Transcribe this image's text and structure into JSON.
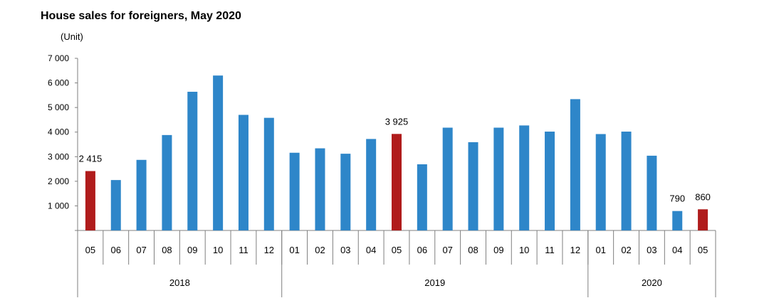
{
  "chart_data": {
    "type": "bar",
    "title": "House sales for foreigners, May 2020",
    "ylabel": "(Unit)",
    "xlabel": "",
    "ylim": [
      0,
      7000
    ],
    "yticks": [
      {
        "value": 1000,
        "label": "1 000"
      },
      {
        "value": 2000,
        "label": "2 000"
      },
      {
        "value": 3000,
        "label": "3 000"
      },
      {
        "value": 4000,
        "label": "4 000"
      },
      {
        "value": 5000,
        "label": "5 000"
      },
      {
        "value": 6000,
        "label": "6 000"
      },
      {
        "value": 7000,
        "label": "7 000"
      }
    ],
    "categories": [
      "05",
      "06",
      "07",
      "08",
      "09",
      "10",
      "11",
      "12",
      "01",
      "02",
      "03",
      "04",
      "05",
      "06",
      "07",
      "08",
      "09",
      "10",
      "11",
      "12",
      "01",
      "02",
      "03",
      "04",
      "05"
    ],
    "values": [
      2415,
      2050,
      2870,
      3880,
      5640,
      6300,
      4700,
      4580,
      3160,
      3340,
      3120,
      3720,
      3925,
      2690,
      4180,
      3590,
      4180,
      4270,
      4020,
      5340,
      3920,
      4020,
      3040,
      790,
      860
    ],
    "highlight": [
      0,
      12,
      24
    ],
    "data_labels": [
      {
        "index": 0,
        "text": "2 415"
      },
      {
        "index": 12,
        "text": "3 925"
      },
      {
        "index": 23,
        "text": "790"
      },
      {
        "index": 24,
        "text": "860"
      }
    ],
    "groups": [
      {
        "label": "2018",
        "start": 0,
        "end": 7
      },
      {
        "label": "2019",
        "start": 8,
        "end": 19
      },
      {
        "label": "2020",
        "start": 20,
        "end": 24
      }
    ],
    "colors": {
      "bar": "#2e86c9",
      "highlight": "#b01c1c",
      "axis": "#7f7f7f"
    },
    "grid": false,
    "legend": "none"
  }
}
